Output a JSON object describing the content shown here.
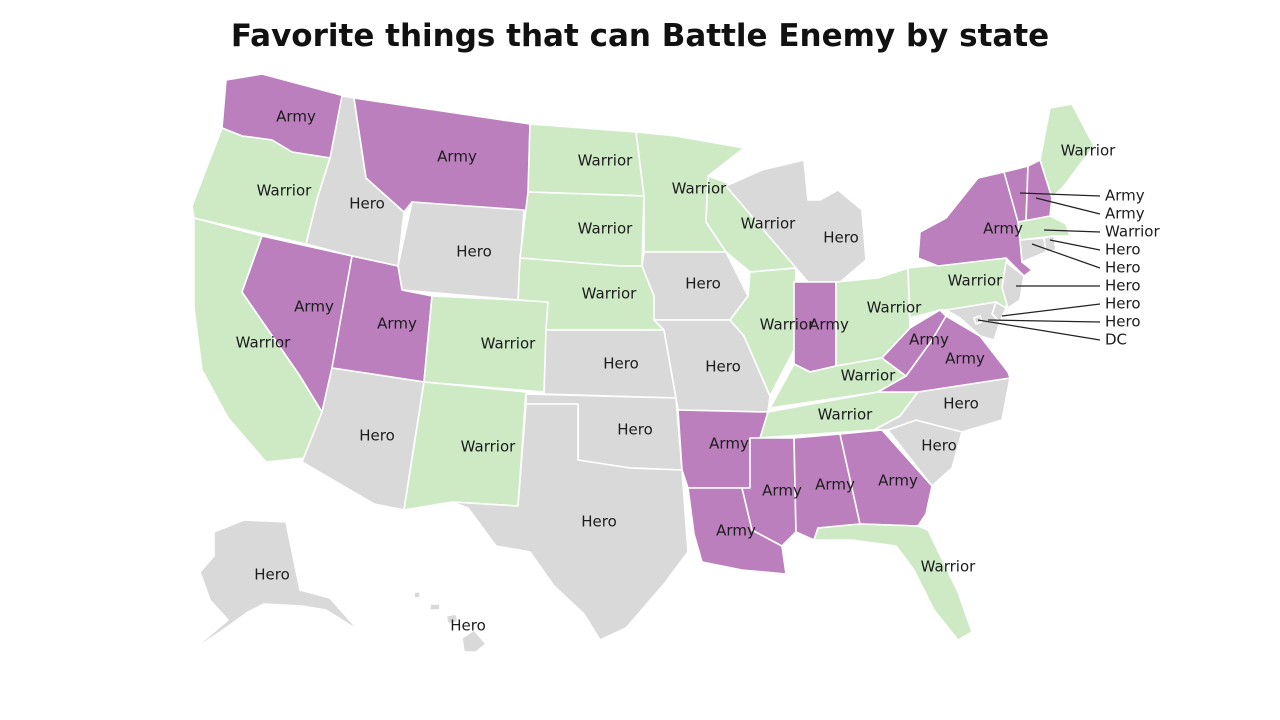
{
  "title": "Favorite things that can Battle Enemy by state",
  "colors": {
    "Army": "#bb7fbd",
    "Warrior": "#cdeac5",
    "Hero": "#d9d9d9"
  },
  "states": {
    "WA": "Army",
    "OR": "Warrior",
    "CA": "Warrior",
    "NV": "Army",
    "ID": "Hero",
    "MT": "Army",
    "WY": "Hero",
    "UT": "Army",
    "AZ": "Hero",
    "CO": "Warrior",
    "NM": "Warrior",
    "ND": "Warrior",
    "SD": "Warrior",
    "NE": "Warrior",
    "KS": "Hero",
    "OK": "Hero",
    "TX": "Hero",
    "MN": "Warrior",
    "IA": "Hero",
    "MO": "Hero",
    "AR": "Army",
    "LA": "Army",
    "WI": "Warrior",
    "IL": "Warrior",
    "MI": "Hero",
    "IN": "Army",
    "OH": "Warrior",
    "KY": "Warrior",
    "TN": "Warrior",
    "MS": "Army",
    "AL": "Army",
    "GA": "Army",
    "FL": "Warrior",
    "SC": "Hero",
    "NC": "Hero",
    "VA": "Army",
    "WV": "Army",
    "PA": "Warrior",
    "NY": "Army",
    "ME": "Warrior",
    "VT": "Army",
    "NH": "Army",
    "MA": "Warrior",
    "RI": "Hero",
    "CT": "Hero",
    "NJ": "Hero",
    "DE": "Hero",
    "MD": "Hero",
    "DC": "Hero",
    "AK": "Hero",
    "HI": "Hero"
  },
  "labels": {
    "WA": "Army",
    "MT": "Army",
    "OR": "Warrior",
    "ID": "Hero",
    "ND": "Warrior",
    "MN": "Warrior",
    "ME": "Warrior",
    "WY": "Hero",
    "SD": "Warrior",
    "WI": "Warrior",
    "MI": "Hero",
    "NY": "Army",
    "CA": "Warrior",
    "NV": "Army",
    "UT": "Army",
    "CO": "Warrior",
    "NE": "Warrior",
    "IA": "Hero",
    "IL": "Warrior",
    "IN": "Army",
    "OH": "Warrior",
    "PA": "Warrior",
    "KS": "Hero",
    "MO": "Hero",
    "WV": "Army",
    "VA": "Army",
    "KY": "Warrior",
    "AZ": "Hero",
    "NM": "Warrior",
    "OK": "Hero",
    "AR": "Army",
    "TN": "Warrior",
    "NC": "Hero",
    "SC": "Hero",
    "MS": "Army",
    "AL": "Army",
    "GA": "Army",
    "LA": "Army",
    "TX": "Hero",
    "FL": "Warrior",
    "AK": "Hero",
    "HI": "Hero"
  },
  "callouts": [
    {
      "state": "VT",
      "text": "Army"
    },
    {
      "state": "NH",
      "text": "Army"
    },
    {
      "state": "MA",
      "text": "Warrior"
    },
    {
      "state": "RI",
      "text": "Hero"
    },
    {
      "state": "CT",
      "text": "Hero"
    },
    {
      "state": "NJ",
      "text": "Hero"
    },
    {
      "state": "DE",
      "text": "Hero"
    },
    {
      "state": "MD",
      "text": "Hero"
    },
    {
      "state": "DC",
      "text": "DC"
    }
  ]
}
